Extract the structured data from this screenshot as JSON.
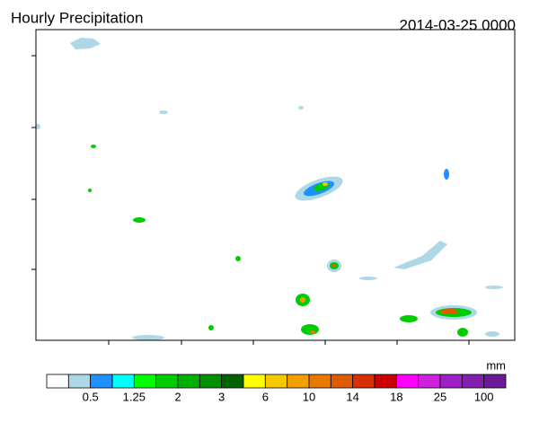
{
  "header": {
    "title": "Hourly Precipitation",
    "timestamp": "2014-03-25 0000"
  },
  "colorbar": {
    "unit": "mm",
    "labels": [
      "0.5",
      "1.25",
      "2",
      "3",
      "6",
      "10",
      "14",
      "18",
      "25",
      "100"
    ],
    "colors": [
      "#ffffff",
      "#add8e6",
      "#1e90ff",
      "#00ffff",
      "#00ff00",
      "#00cd00",
      "#00b000",
      "#009000",
      "#006400",
      "#ffff00",
      "#f5c800",
      "#f0a000",
      "#e87800",
      "#e05a00",
      "#d83000",
      "#cc0000",
      "#ff00ff",
      "#cc22dd",
      "#a020c8",
      "#8420b0",
      "#6a1a98"
    ]
  }
}
